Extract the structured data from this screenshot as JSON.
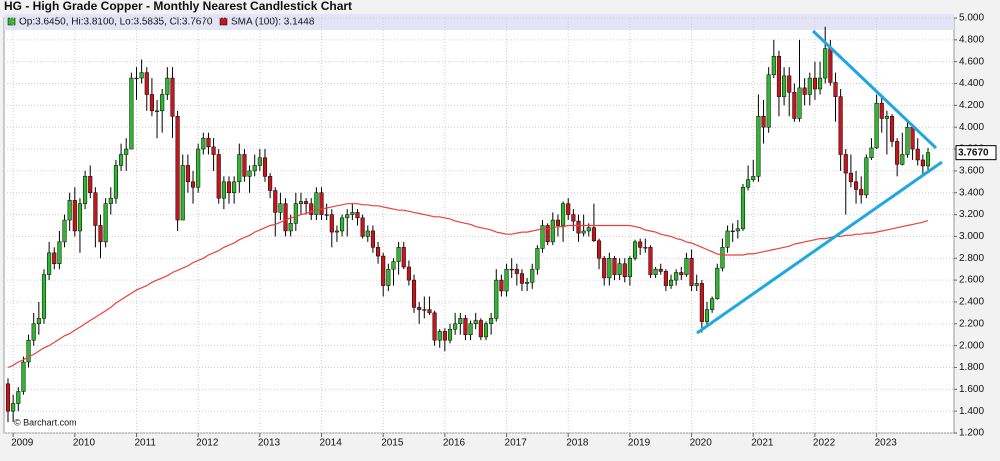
{
  "chart_data": {
    "type": "candlestick",
    "title": "HG - High Grade Copper - Monthly Nearest Candlestick Chart",
    "legend_text": "Op:3.6450, Hi:3.8100, Lo:3.5835, Cl:3.7670",
    "source": "© Barchart.com",
    "up_color": "#2eb82e",
    "down_color": "#c4161c",
    "last_label": "3.7670",
    "year_labels": [
      "2009",
      "2010",
      "2011",
      "2012",
      "2013",
      "2014",
      "2015",
      "2016",
      "2017",
      "2018",
      "2019",
      "2020",
      "2021",
      "2022",
      "2023"
    ],
    "ylim": [
      1.2,
      5.0
    ],
    "yticks": [
      {
        "value": 1.2,
        "label": "1.200"
      },
      {
        "value": 1.4,
        "label": "1.400"
      },
      {
        "value": 1.6,
        "label": "1.600"
      },
      {
        "value": 1.8,
        "label": "1.800"
      },
      {
        "value": 2.0,
        "label": "2.000"
      },
      {
        "value": 2.2,
        "label": "2.200"
      },
      {
        "value": 2.4,
        "label": "2.400"
      },
      {
        "value": 2.6,
        "label": "2.600"
      },
      {
        "value": 2.8,
        "label": "2.800"
      },
      {
        "value": 3.0,
        "label": "3.000"
      },
      {
        "value": 3.2,
        "label": "3.200"
      },
      {
        "value": 3.4,
        "label": "3.400"
      },
      {
        "value": 3.6,
        "label": "3.600"
      },
      {
        "value": 3.8,
        "label": "3.800"
      },
      {
        "value": 4.0,
        "label": "4.000"
      },
      {
        "value": 4.2,
        "label": "4.200"
      },
      {
        "value": 4.4,
        "label": "4.400"
      },
      {
        "value": 4.6,
        "label": "4.600"
      },
      {
        "value": 4.8,
        "label": "4.800"
      },
      {
        "value": 5.0,
        "label": "5.000"
      }
    ],
    "grid": true,
    "open": [
      1.65,
      1.4,
      1.47,
      1.58,
      1.85,
      2.05,
      2.2,
      2.25,
      2.65,
      2.85,
      2.75,
      2.95,
      3.15,
      3.33,
      3.05,
      3.3,
      3.55,
      3.4,
      3.1,
      2.95,
      3.3,
      3.35,
      3.65,
      3.75,
      3.8,
      4.45,
      4.45,
      4.5,
      4.3,
      4.15,
      4.15,
      4.3,
      4.45,
      4.1,
      3.15,
      3.65,
      3.5,
      3.45,
      3.8,
      3.9,
      3.82,
      3.75,
      3.35,
      3.5,
      3.4,
      3.5,
      3.75,
      3.55,
      3.6,
      3.65,
      3.72,
      3.55,
      3.42,
      3.22,
      3.3,
      3.05,
      3.12,
      3.3,
      3.32,
      3.3,
      3.2,
      3.4,
      3.2,
      3.2,
      3.04,
      3.05,
      3.17,
      3.2,
      3.22,
      3.17,
      3.0,
      3.05,
      2.9,
      2.82,
      2.55,
      2.7,
      2.77,
      2.9,
      2.72,
      2.6,
      2.35,
      2.33,
      2.33,
      2.3,
      2.05,
      2.13,
      2.05,
      2.15,
      2.2,
      2.25,
      2.1,
      2.2,
      2.23,
      2.08,
      2.2,
      2.25,
      2.6,
      2.5,
      2.7,
      2.7,
      2.66,
      2.57,
      2.58,
      2.7,
      2.89,
      3.1,
      2.95,
      3.15,
      3.1,
      3.3,
      3.2,
      3.14,
      3.03,
      3.05,
      3.08,
      2.96,
      2.8,
      2.62,
      2.8,
      2.65,
      2.75,
      2.63,
      2.8,
      2.95,
      2.9,
      2.9,
      2.65,
      2.7,
      2.68,
      2.55,
      2.6,
      2.67,
      2.65,
      2.8,
      2.55,
      2.57,
      2.22,
      2.33,
      2.43,
      2.71,
      2.9,
      3.05,
      3.05,
      3.07,
      3.45,
      3.52,
      3.55,
      4.1,
      4.0,
      4.48,
      4.65,
      4.28,
      4.47,
      4.32,
      4.08,
      4.36,
      4.3,
      4.45,
      4.35,
      4.45,
      4.72,
      4.41,
      4.28,
      3.75,
      3.58,
      3.5,
      3.43,
      3.38,
      3.72,
      3.81,
      4.22,
      4.08,
      4.1,
      3.87,
      3.66,
      3.75,
      4.0,
      3.8,
      3.7,
      3.645
    ],
    "high": [
      1.7,
      1.55,
      1.62,
      1.9,
      2.1,
      2.3,
      2.4,
      2.7,
      2.95,
      2.9,
      3.05,
      3.2,
      3.4,
      3.45,
      3.35,
      3.6,
      3.65,
      3.45,
      3.2,
      3.35,
      3.45,
      3.7,
      3.85,
      3.9,
      4.5,
      4.55,
      4.62,
      4.55,
      4.45,
      4.25,
      4.35,
      4.55,
      4.55,
      4.15,
      3.75,
      3.75,
      3.6,
      3.85,
      3.95,
      3.95,
      3.9,
      3.8,
      3.55,
      3.55,
      3.55,
      3.85,
      3.8,
      3.65,
      3.75,
      3.8,
      3.8,
      3.58,
      3.45,
      3.4,
      3.35,
      3.2,
      3.4,
      3.4,
      3.35,
      3.35,
      3.45,
      3.45,
      3.3,
      3.25,
      3.1,
      3.2,
      3.25,
      3.3,
      3.25,
      3.2,
      3.1,
      3.1,
      2.95,
      2.85,
      2.75,
      2.8,
      2.95,
      2.95,
      2.78,
      2.65,
      2.4,
      2.45,
      2.45,
      2.32,
      2.15,
      2.16,
      2.2,
      2.3,
      2.3,
      2.28,
      2.23,
      2.3,
      2.25,
      2.22,
      2.3,
      2.7,
      2.65,
      2.75,
      2.8,
      2.75,
      2.7,
      2.62,
      2.75,
      2.92,
      3.15,
      3.12,
      3.22,
      3.2,
      3.32,
      3.35,
      3.25,
      3.2,
      3.2,
      3.12,
      3.3,
      2.98,
      2.82,
      2.85,
      2.82,
      2.8,
      2.8,
      2.82,
      2.97,
      2.98,
      2.98,
      2.92,
      2.72,
      2.75,
      2.7,
      2.65,
      2.7,
      2.72,
      2.85,
      2.88,
      2.65,
      2.6,
      2.4,
      2.45,
      2.75,
      2.98,
      3.1,
      3.12,
      3.15,
      3.48,
      3.65,
      3.7,
      4.3,
      4.25,
      4.55,
      4.8,
      4.7,
      4.55,
      4.55,
      4.4,
      4.8,
      4.45,
      4.5,
      4.6,
      4.6,
      4.92,
      4.8,
      4.5,
      4.35,
      3.8,
      3.75,
      3.6,
      3.55,
      3.75,
      3.9,
      4.3,
      4.3,
      4.15,
      4.12,
      3.9,
      3.95,
      4.05,
      4.0,
      3.9,
      3.75,
      3.81
    ],
    "low": [
      1.3,
      1.3,
      1.4,
      1.55,
      1.8,
      2.0,
      2.1,
      2.2,
      2.6,
      2.7,
      2.7,
      2.9,
      3.05,
      3.0,
      2.85,
      3.25,
      3.35,
      2.9,
      2.8,
      2.9,
      3.2,
      3.3,
      3.6,
      3.6,
      3.8,
      4.25,
      4.4,
      4.15,
      4.1,
      3.9,
      3.95,
      4.25,
      3.9,
      3.05,
      3.15,
      3.4,
      3.3,
      3.4,
      3.75,
      3.75,
      3.6,
      3.3,
      3.25,
      3.3,
      3.3,
      3.4,
      3.5,
      3.4,
      3.55,
      3.6,
      3.5,
      3.35,
      3.0,
      3.15,
      3.0,
      3.0,
      3.05,
      3.2,
      3.2,
      3.15,
      3.15,
      3.15,
      3.15,
      2.9,
      2.95,
      3.0,
      3.0,
      3.15,
      3.1,
      2.98,
      2.95,
      2.85,
      2.75,
      2.45,
      2.5,
      2.55,
      2.65,
      2.7,
      2.55,
      2.3,
      2.2,
      2.25,
      2.28,
      2.0,
      1.98,
      1.95,
      2.02,
      2.1,
      2.1,
      2.05,
      2.05,
      2.15,
      2.05,
      2.05,
      2.1,
      2.22,
      2.45,
      2.45,
      2.62,
      2.55,
      2.5,
      2.5,
      2.52,
      2.65,
      2.85,
      2.92,
      2.92,
      3.0,
      2.95,
      3.15,
      3.05,
      2.95,
      3.0,
      3.0,
      2.95,
      2.7,
      2.55,
      2.55,
      2.6,
      2.6,
      2.58,
      2.55,
      2.78,
      2.83,
      2.85,
      2.62,
      2.62,
      2.65,
      2.5,
      2.52,
      2.55,
      2.6,
      2.63,
      2.5,
      2.5,
      2.12,
      2.17,
      2.3,
      2.42,
      2.68,
      2.85,
      2.95,
      2.98,
      3.05,
      3.42,
      3.5,
      3.5,
      3.85,
      3.95,
      4.45,
      4.1,
      4.2,
      4.1,
      4.05,
      4.05,
      4.2,
      4.2,
      4.25,
      4.3,
      4.4,
      4.38,
      4.05,
      3.6,
      3.2,
      3.45,
      3.3,
      3.3,
      3.35,
      3.7,
      3.8,
      3.95,
      3.75,
      3.82,
      3.55,
      3.65,
      3.72,
      3.7,
      3.65,
      3.55,
      3.5835
    ],
    "close": [
      1.4,
      1.47,
      1.58,
      1.85,
      2.05,
      2.2,
      2.25,
      2.65,
      2.85,
      2.75,
      2.95,
      3.15,
      3.33,
      3.05,
      3.3,
      3.55,
      3.4,
      3.1,
      2.95,
      3.3,
      3.35,
      3.65,
      3.75,
      3.8,
      4.45,
      4.45,
      4.5,
      4.3,
      4.15,
      4.15,
      4.3,
      4.45,
      4.1,
      3.15,
      3.65,
      3.5,
      3.45,
      3.8,
      3.9,
      3.82,
      3.75,
      3.35,
      3.5,
      3.4,
      3.5,
      3.75,
      3.55,
      3.6,
      3.65,
      3.72,
      3.55,
      3.42,
      3.22,
      3.3,
      3.05,
      3.12,
      3.3,
      3.32,
      3.3,
      3.2,
      3.4,
      3.2,
      3.2,
      3.04,
      3.05,
      3.17,
      3.2,
      3.22,
      3.17,
      3.0,
      3.05,
      2.9,
      2.82,
      2.55,
      2.7,
      2.77,
      2.9,
      2.72,
      2.6,
      2.35,
      2.33,
      2.33,
      2.3,
      2.05,
      2.13,
      2.05,
      2.15,
      2.2,
      2.25,
      2.1,
      2.2,
      2.23,
      2.08,
      2.2,
      2.25,
      2.6,
      2.5,
      2.7,
      2.7,
      2.66,
      2.57,
      2.58,
      2.7,
      2.89,
      3.1,
      2.95,
      3.15,
      3.1,
      3.3,
      3.2,
      3.14,
      3.03,
      3.05,
      3.08,
      2.96,
      2.8,
      2.62,
      2.8,
      2.65,
      2.75,
      2.63,
      2.8,
      2.95,
      2.9,
      2.9,
      2.65,
      2.7,
      2.68,
      2.55,
      2.6,
      2.67,
      2.65,
      2.8,
      2.55,
      2.57,
      2.22,
      2.33,
      2.43,
      2.71,
      2.9,
      3.05,
      3.05,
      3.07,
      3.45,
      3.52,
      3.55,
      4.1,
      4.0,
      4.48,
      4.65,
      4.28,
      4.47,
      4.32,
      4.08,
      4.36,
      4.3,
      4.45,
      4.35,
      4.45,
      4.72,
      4.41,
      4.28,
      3.75,
      3.58,
      3.5,
      3.43,
      3.38,
      3.72,
      3.81,
      4.22,
      4.08,
      4.1,
      3.87,
      3.66,
      3.75,
      4.0,
      3.8,
      3.7,
      3.645,
      3.767
    ],
    "sma": {
      "name": "SMA (100): 3.1448",
      "color": "#e8413c",
      "values": [
        1.8,
        1.82,
        1.85,
        1.87,
        1.9,
        1.92,
        1.95,
        1.98,
        2.0,
        2.03,
        2.06,
        2.09,
        2.11,
        2.14,
        2.17,
        2.2,
        2.23,
        2.26,
        2.29,
        2.32,
        2.35,
        2.39,
        2.42,
        2.45,
        2.48,
        2.51,
        2.53,
        2.55,
        2.58,
        2.6,
        2.62,
        2.64,
        2.67,
        2.69,
        2.71,
        2.73,
        2.76,
        2.78,
        2.8,
        2.83,
        2.85,
        2.87,
        2.9,
        2.92,
        2.94,
        2.97,
        2.99,
        3.01,
        3.04,
        3.06,
        3.08,
        3.1,
        3.11,
        3.13,
        3.15,
        3.17,
        3.18,
        3.2,
        3.21,
        3.23,
        3.24,
        3.25,
        3.26,
        3.27,
        3.28,
        3.29,
        3.3,
        3.3,
        3.3,
        3.29,
        3.29,
        3.28,
        3.28,
        3.27,
        3.26,
        3.25,
        3.24,
        3.24,
        3.23,
        3.22,
        3.21,
        3.2,
        3.19,
        3.18,
        3.18,
        3.17,
        3.16,
        3.14,
        3.13,
        3.12,
        3.11,
        3.09,
        3.08,
        3.07,
        3.06,
        3.04,
        3.03,
        3.02,
        3.02,
        3.03,
        3.04,
        3.04,
        3.05,
        3.06,
        3.07,
        3.07,
        3.08,
        3.09,
        3.09,
        3.1,
        3.1,
        3.1,
        3.1,
        3.1,
        3.1,
        3.1,
        3.1,
        3.1,
        3.1,
        3.1,
        3.1,
        3.1,
        3.09,
        3.08,
        3.06,
        3.05,
        3.04,
        3.02,
        3.01,
        3.0,
        2.98,
        2.97,
        2.95,
        2.94,
        2.92,
        2.9,
        2.88,
        2.86,
        2.84,
        2.83,
        2.83,
        2.83,
        2.83,
        2.83,
        2.84,
        2.84,
        2.85,
        2.86,
        2.87,
        2.88,
        2.89,
        2.9,
        2.91,
        2.93,
        2.94,
        2.95,
        2.96,
        2.97,
        2.98,
        2.98,
        2.99,
        3.0,
        3.0,
        3.01,
        3.01,
        3.02,
        3.02,
        3.03,
        3.03,
        3.04,
        3.05,
        3.06,
        3.07,
        3.08,
        3.09,
        3.1,
        3.11,
        3.12,
        3.13,
        3.1448
      ]
    }
  }
}
